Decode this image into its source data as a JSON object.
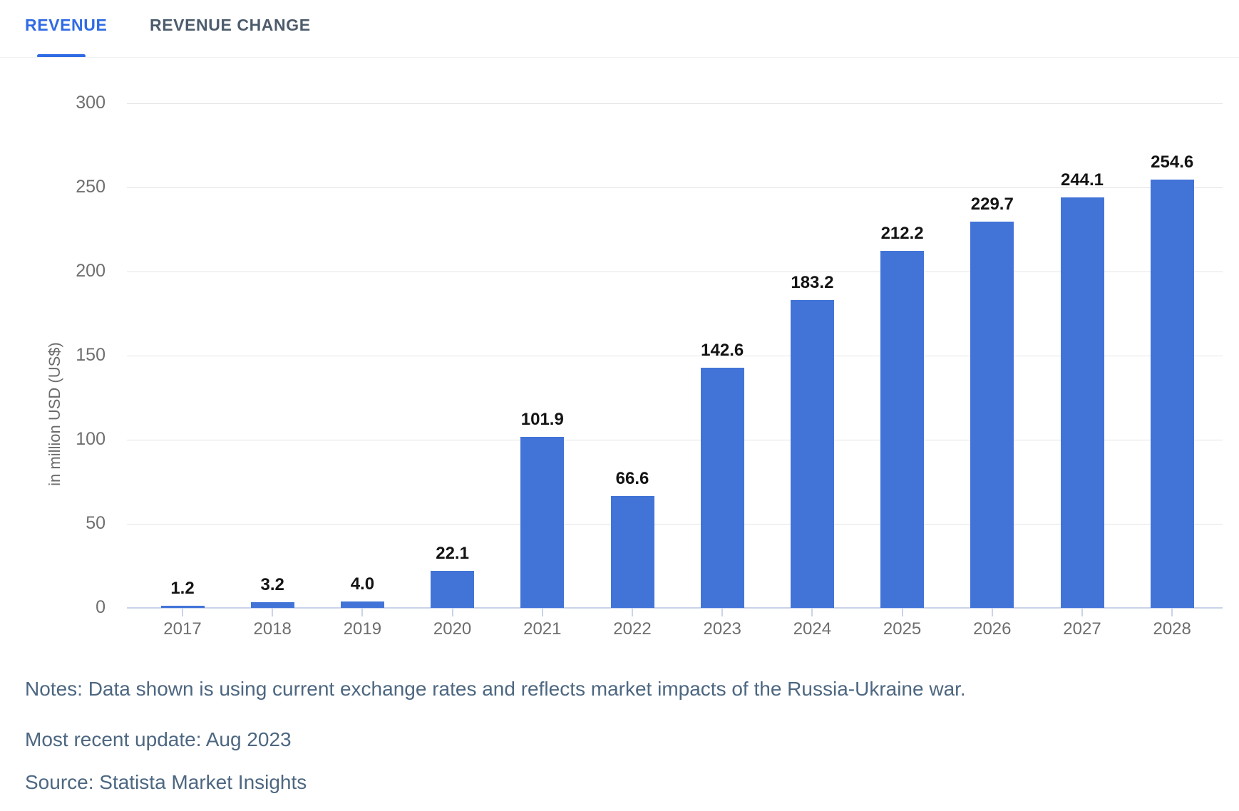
{
  "tabs": {
    "items": [
      {
        "label": "REVENUE",
        "active": true
      },
      {
        "label": "REVENUE CHANGE",
        "active": false
      }
    ]
  },
  "chart_data": {
    "type": "bar",
    "categories": [
      "2017",
      "2018",
      "2019",
      "2020",
      "2021",
      "2022",
      "2023",
      "2024",
      "2025",
      "2026",
      "2027",
      "2028"
    ],
    "values": [
      1.2,
      3.2,
      4.0,
      22.1,
      101.9,
      66.6,
      142.6,
      183.2,
      212.2,
      229.7,
      244.1,
      254.6
    ],
    "title": "",
    "xlabel": "",
    "ylabel": "in million USD (US$)",
    "ylim": [
      0,
      300
    ],
    "yticks": [
      0,
      50,
      100,
      150,
      200,
      250,
      300
    ],
    "grid": true,
    "legend": "none",
    "bar_color": "#4274d8",
    "value_label_decimals": 1
  },
  "colors": {
    "accent_blue": "#2f6be4",
    "bar_blue": "#4274d8",
    "axis_line": "#c9d3ea",
    "gridline": "#e4e4e4",
    "tick_text": "#6f6f6f",
    "note_text": "#4d6781"
  },
  "notes": {
    "lines": [
      "Notes: Data shown is using current exchange rates and reflects market impacts of the Russia-Ukraine war.",
      "Most recent update: Aug 2023",
      "Source: Statista Market Insights"
    ]
  }
}
